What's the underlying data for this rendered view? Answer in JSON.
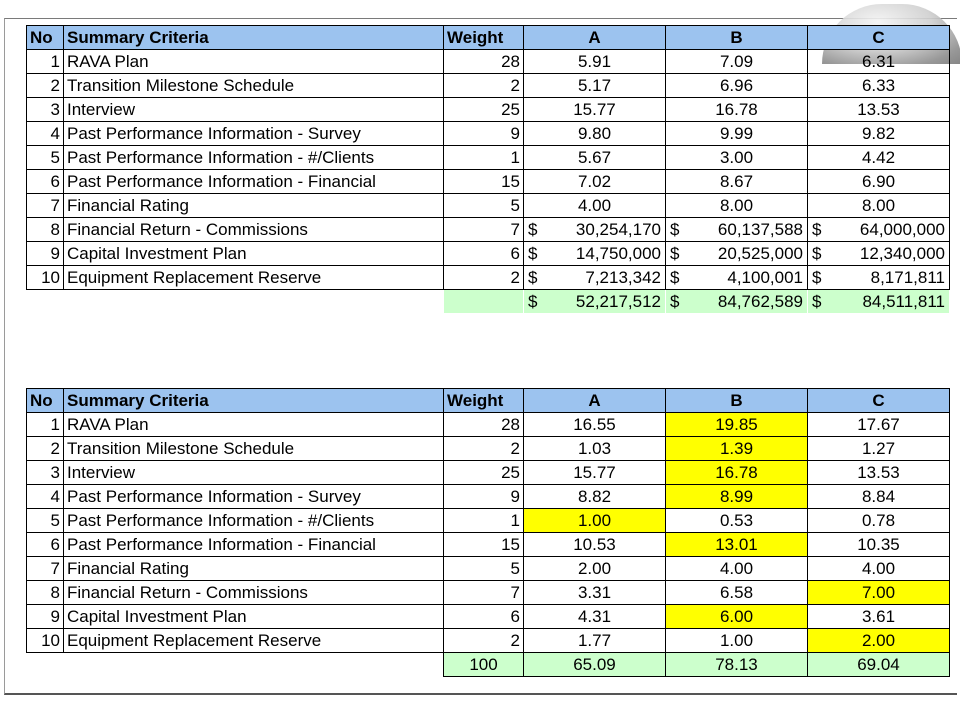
{
  "headers": {
    "no": "No",
    "criteria": "Summary Criteria",
    "weight": "Weight",
    "a": "A",
    "b": "B",
    "c": "C"
  },
  "colors": {
    "header": "#9cc3ef",
    "highlight": "#ffff00",
    "total": "#ccffcc"
  },
  "table1": {
    "rows": [
      {
        "no": "1",
        "criteria": "RAVA Plan",
        "weight": "28",
        "a": "5.91",
        "b": "7.09",
        "c": "6.31"
      },
      {
        "no": "2",
        "criteria": "Transition Milestone Schedule",
        "weight": "2",
        "a": "5.17",
        "b": "6.96",
        "c": "6.33"
      },
      {
        "no": "3",
        "criteria": "Interview",
        "weight": "25",
        "a": "15.77",
        "b": "16.78",
        "c": "13.53"
      },
      {
        "no": "4",
        "criteria": "Past Performance Information - Survey",
        "weight": "9",
        "a": "9.80",
        "b": "9.99",
        "c": "9.82"
      },
      {
        "no": "5",
        "criteria": "Past Performance Information - #/Clients",
        "weight": "1",
        "a": "5.67",
        "b": "3.00",
        "c": "4.42"
      },
      {
        "no": "6",
        "criteria": "Past Performance Information - Financial",
        "weight": "15",
        "a": "7.02",
        "b": "8.67",
        "c": "6.90"
      },
      {
        "no": "7",
        "criteria": "Financial Rating",
        "weight": "5",
        "a": "4.00",
        "b": "8.00",
        "c": "8.00"
      }
    ],
    "money_rows": [
      {
        "no": "8",
        "criteria": "Financial Return - Commissions",
        "weight": "7",
        "a": "30,254,170",
        "b": "60,137,588",
        "c": "64,000,000"
      },
      {
        "no": "9",
        "criteria": "Capital Investment Plan",
        "weight": "6",
        "a": "14,750,000",
        "b": "20,525,000",
        "c": "12,340,000"
      },
      {
        "no": "10",
        "criteria": "Equipment Replacement Reserve",
        "weight": "2",
        "a": "7,213,342",
        "b": "4,100,001",
        "c": "8,171,811"
      }
    ],
    "currency": "$",
    "totals": {
      "a": "52,217,512",
      "b": "84,762,589",
      "c": "84,511,811"
    }
  },
  "table2": {
    "rows": [
      {
        "no": "1",
        "criteria": "RAVA Plan",
        "weight": "28",
        "a": "16.55",
        "b": "19.85",
        "c": "17.67",
        "highlight": "b"
      },
      {
        "no": "2",
        "criteria": "Transition Milestone Schedule",
        "weight": "2",
        "a": "1.03",
        "b": "1.39",
        "c": "1.27",
        "highlight": "b"
      },
      {
        "no": "3",
        "criteria": "Interview",
        "weight": "25",
        "a": "15.77",
        "b": "16.78",
        "c": "13.53",
        "highlight": "b"
      },
      {
        "no": "4",
        "criteria": "Past Performance Information - Survey",
        "weight": "9",
        "a": "8.82",
        "b": "8.99",
        "c": "8.84",
        "highlight": "b"
      },
      {
        "no": "5",
        "criteria": "Past Performance Information - #/Clients",
        "weight": "1",
        "a": "1.00",
        "b": "0.53",
        "c": "0.78",
        "highlight": "a"
      },
      {
        "no": "6",
        "criteria": "Past Performance Information - Financial",
        "weight": "15",
        "a": "10.53",
        "b": "13.01",
        "c": "10.35",
        "highlight": "b"
      },
      {
        "no": "7",
        "criteria": "Financial Rating",
        "weight": "5",
        "a": "2.00",
        "b": "4.00",
        "c": "4.00",
        "highlight": ""
      },
      {
        "no": "8",
        "criteria": "Financial Return - Commissions",
        "weight": "7",
        "a": "3.31",
        "b": "6.58",
        "c": "7.00",
        "highlight": "c"
      },
      {
        "no": "9",
        "criteria": "Capital Investment Plan",
        "weight": "6",
        "a": "4.31",
        "b": "6.00",
        "c": "3.61",
        "highlight": "b"
      },
      {
        "no": "10",
        "criteria": "Equipment Replacement Reserve",
        "weight": "2",
        "a": "1.77",
        "b": "1.00",
        "c": "2.00",
        "highlight": "c"
      }
    ],
    "totals": {
      "weight": "100",
      "a": "65.09",
      "b": "78.13",
      "c": "69.04"
    }
  }
}
